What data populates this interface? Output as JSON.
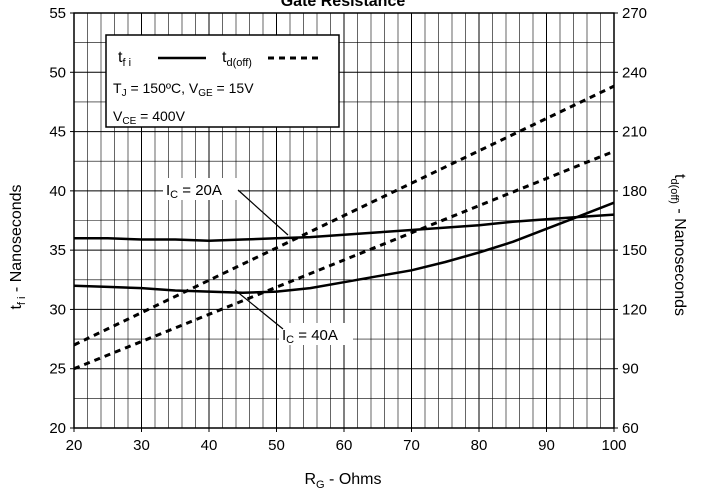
{
  "chart_data": {
    "type": "line",
    "title": "Gate Resistance",
    "xlabel": {
      "main": "R",
      "sub": "G",
      "rest": " - Ohms"
    },
    "ylabel_left": {
      "main": "t",
      "sub": "f i",
      "rest": " - Nanoseconds"
    },
    "ylabel_right": {
      "main": "t",
      "sub": "d(off)",
      "rest": " - Nanoseconds"
    },
    "xlim": [
      20,
      100
    ],
    "ylim_left": [
      20,
      55
    ],
    "ylim_right": [
      60,
      270
    ],
    "x_ticks": [
      20,
      30,
      40,
      50,
      60,
      70,
      80,
      90,
      100
    ],
    "y_ticks_left": [
      20,
      25,
      30,
      35,
      40,
      45,
      50,
      55
    ],
    "y_ticks_right": [
      60,
      90,
      120,
      150,
      180,
      210,
      240,
      270
    ],
    "grid": true,
    "legend": {
      "position": "top-left",
      "items": [
        {
          "main": "t",
          "sub": "f i",
          "style": "solid"
        },
        {
          "main": "t",
          "sub": "d(off)",
          "style": "dashed"
        }
      ],
      "conditions": [
        {
          "parts": [
            {
              "t": "T"
            },
            {
              "t": "J",
              "sub": true
            },
            {
              "t": " = 150ºC,  V"
            },
            {
              "t": "GE",
              "sub": true
            },
            {
              "t": " = 15V"
            }
          ]
        },
        {
          "parts": [
            {
              "t": "V"
            },
            {
              "t": "CE",
              "sub": true
            },
            {
              "t": " = 400V"
            }
          ]
        }
      ]
    },
    "annotations": [
      {
        "main": "I",
        "sub": "C",
        "rest": " = 20A"
      },
      {
        "main": "I",
        "sub": "C",
        "rest": " = 40A"
      }
    ],
    "series": [
      {
        "axis": "left",
        "style": "solid",
        "x": [
          20,
          25,
          30,
          35,
          40,
          45,
          50,
          55,
          60,
          65,
          70,
          75,
          80,
          85,
          90,
          95,
          100
        ],
        "y": [
          36.0,
          36.0,
          35.9,
          35.9,
          35.8,
          35.9,
          36.0,
          36.1,
          36.3,
          36.5,
          36.7,
          36.9,
          37.1,
          37.4,
          37.6,
          37.8,
          38.0
        ]
      },
      {
        "axis": "left",
        "style": "solid",
        "x": [
          20,
          25,
          30,
          35,
          40,
          45,
          50,
          55,
          60,
          65,
          70,
          75,
          80,
          85,
          90,
          95,
          100
        ],
        "y": [
          32.0,
          31.9,
          31.8,
          31.6,
          31.5,
          31.4,
          31.5,
          31.8,
          32.3,
          32.8,
          33.3,
          34.0,
          34.8,
          35.7,
          36.8,
          37.9,
          39.0
        ]
      },
      {
        "axis": "right",
        "style": "dashed",
        "x": [
          20,
          100
        ],
        "y": [
          102,
          233
        ]
      },
      {
        "axis": "right",
        "style": "dashed",
        "x": [
          20,
          100
        ],
        "y": [
          90,
          200
        ]
      }
    ]
  }
}
